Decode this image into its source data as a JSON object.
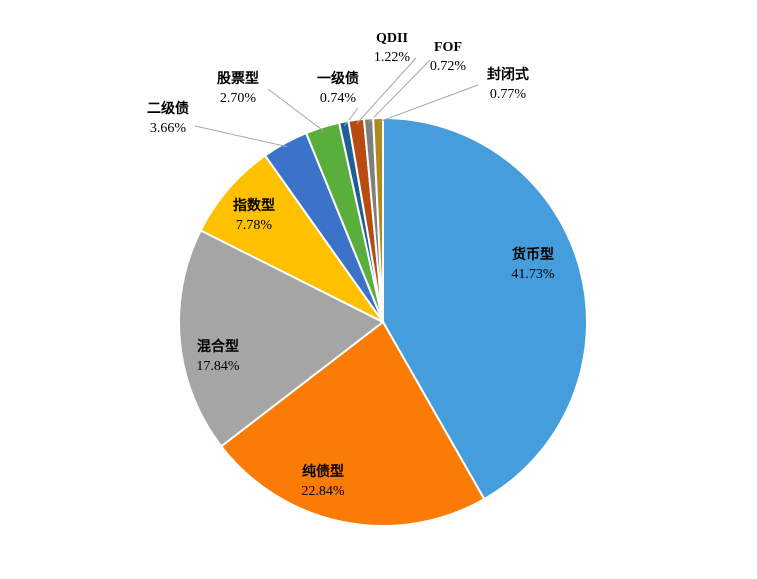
{
  "chart_data": {
    "type": "pie",
    "categories": [
      "货币型",
      "纯债型",
      "混合型",
      "指数型",
      "二级债",
      "股票型",
      "一级债",
      "QDII",
      "FOF",
      "封闭式"
    ],
    "values": [
      41.73,
      22.84,
      17.84,
      7.78,
      3.66,
      2.7,
      0.74,
      1.22,
      0.72,
      0.77
    ],
    "value_labels": [
      "41.73%",
      "22.84%",
      "17.84%",
      "7.78%",
      "3.66%",
      "2.70%",
      "0.74%",
      "1.22%",
      "0.72%",
      "0.77%"
    ],
    "colors": [
      "#459ddb",
      "#fa7b05",
      "#a5a5a5",
      "#ffc000",
      "#3a73c8",
      "#5aae3c",
      "#1f5f96",
      "#b94a10",
      "#7f7f7f",
      "#b08a1c"
    ]
  }
}
